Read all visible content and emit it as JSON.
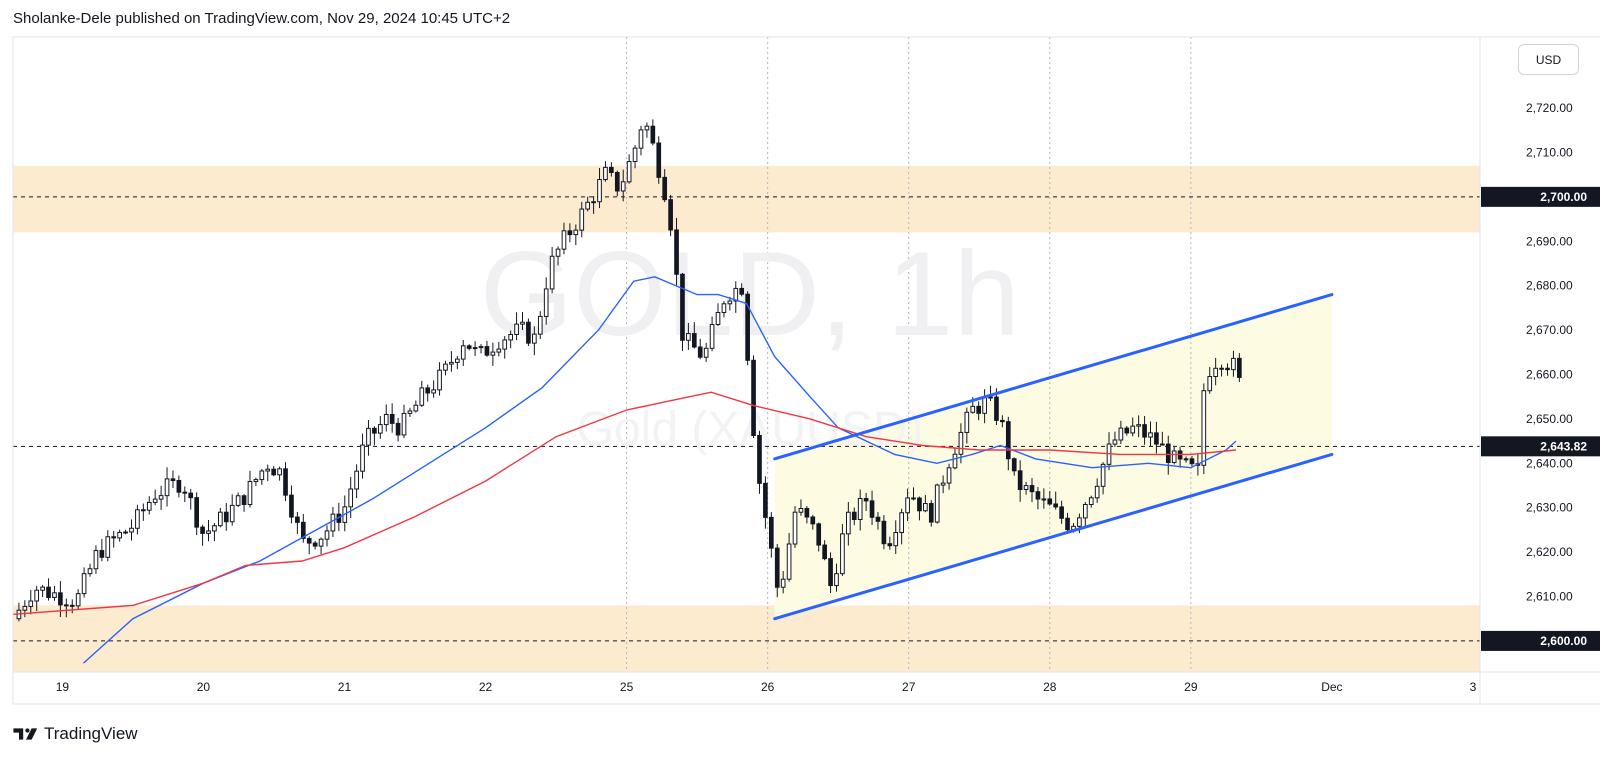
{
  "header": {
    "title": "Sholanke-Dele published on TradingView.com, Nov 29, 2024 10:45 UTC+2"
  },
  "footer": {
    "brand": "TradingView",
    "logo_icon": "tradingview-logo-icon"
  },
  "price_scale": {
    "unit_label": "USD"
  },
  "chart_data": {
    "type": "candlestick",
    "title": "",
    "watermark": {
      "symbol": "GOLD, 1h",
      "description": "Gold (XAUUSD)"
    },
    "y_range": [
      2593,
      2736
    ],
    "y_ticks": [
      {
        "value": 2600,
        "label": "2,600.00"
      },
      {
        "value": 2610,
        "label": "2,610.00"
      },
      {
        "value": 2620,
        "label": "2,620.00"
      },
      {
        "value": 2630,
        "label": "2,630.00"
      },
      {
        "value": 2640,
        "label": "2,640.00"
      },
      {
        "value": 2650,
        "label": "2,650.00"
      },
      {
        "value": 2660,
        "label": "2,660.00"
      },
      {
        "value": 2670,
        "label": "2,670.00"
      },
      {
        "value": 2680,
        "label": "2,680.00"
      },
      {
        "value": 2690,
        "label": "2,690.00"
      },
      {
        "value": 2700,
        "label": "2,700.00"
      },
      {
        "value": 2710,
        "label": "2,710.00"
      },
      {
        "value": 2720,
        "label": "2,720.00"
      }
    ],
    "x_ticks": [
      {
        "t": 0,
        "label": "19"
      },
      {
        "t": 1,
        "label": "20"
      },
      {
        "t": 2,
        "label": "21"
      },
      {
        "t": 3,
        "label": "22"
      },
      {
        "t": 4,
        "label": "25"
      },
      {
        "t": 5,
        "label": "26"
      },
      {
        "t": 6,
        "label": "27"
      },
      {
        "t": 7,
        "label": "28"
      },
      {
        "t": 8,
        "label": "29"
      },
      {
        "t": 9,
        "label": "Dec"
      },
      {
        "t": 10,
        "label": "3"
      }
    ],
    "x_range": [
      -0.35,
      10.05
    ],
    "gridlines_x": [
      4,
      5,
      6,
      7,
      8
    ],
    "price_labels": [
      {
        "value": 2700,
        "label": "2,700.00"
      },
      {
        "value": 2643.82,
        "label": "2,643.82"
      },
      {
        "value": 2600,
        "label": "2,600.00"
      }
    ],
    "horizontal_lines": [
      2700,
      2643.82,
      2600
    ],
    "zones": [
      {
        "from": 2692,
        "to": 2707,
        "color": "#fdebd0"
      },
      {
        "from": 2593,
        "to": 2608,
        "color": "#fdebd0"
      }
    ],
    "channel": {
      "upper": [
        [
          5.05,
          2641
        ],
        [
          9.0,
          2678
        ]
      ],
      "lower": [
        [
          5.05,
          2605
        ],
        [
          9.0,
          2642
        ]
      ],
      "fill": "#fdfbe1",
      "line_color": "#2962ff"
    },
    "close_anchors": [
      [
        -0.35,
        2605
      ],
      [
        -0.2,
        2612
      ],
      [
        0.1,
        2609
      ],
      [
        0.25,
        2620
      ],
      [
        0.5,
        2626
      ],
      [
        0.65,
        2633
      ],
      [
        0.85,
        2636
      ],
      [
        1.0,
        2624
      ],
      [
        1.15,
        2628
      ],
      [
        1.3,
        2633
      ],
      [
        1.45,
        2640
      ],
      [
        1.55,
        2638
      ],
      [
        1.7,
        2622
      ],
      [
        1.85,
        2624
      ],
      [
        2.0,
        2630
      ],
      [
        2.15,
        2645
      ],
      [
        2.3,
        2650
      ],
      [
        2.4,
        2648
      ],
      [
        2.55,
        2655
      ],
      [
        2.7,
        2660
      ],
      [
        2.85,
        2668
      ],
      [
        2.95,
        2664
      ],
      [
        3.1,
        2668
      ],
      [
        3.25,
        2670
      ],
      [
        3.35,
        2668
      ],
      [
        3.45,
        2684
      ],
      [
        3.55,
        2690
      ],
      [
        3.7,
        2697
      ],
      [
        3.85,
        2705
      ],
      [
        3.95,
        2702
      ],
      [
        4.05,
        2710
      ],
      [
        4.12,
        2718
      ],
      [
        4.2,
        2710
      ],
      [
        4.3,
        2698
      ],
      [
        4.4,
        2668
      ],
      [
        4.55,
        2664
      ],
      [
        4.7,
        2678
      ],
      [
        4.82,
        2680
      ],
      [
        4.92,
        2640
      ],
      [
        5.0,
        2625
      ],
      [
        5.08,
        2610
      ],
      [
        5.2,
        2630
      ],
      [
        5.35,
        2624
      ],
      [
        5.45,
        2612
      ],
      [
        5.55,
        2626
      ],
      [
        5.7,
        2632
      ],
      [
        5.85,
        2622
      ],
      [
        6.0,
        2634
      ],
      [
        6.15,
        2628
      ],
      [
        6.3,
        2642
      ],
      [
        6.45,
        2652
      ],
      [
        6.55,
        2654
      ],
      [
        6.65,
        2650
      ],
      [
        6.75,
        2636
      ],
      [
        6.9,
        2632
      ],
      [
        7.0,
        2630
      ],
      [
        7.15,
        2626
      ],
      [
        7.3,
        2634
      ],
      [
        7.45,
        2645
      ],
      [
        7.6,
        2648
      ],
      [
        7.75,
        2645
      ],
      [
        7.9,
        2640
      ],
      [
        8.05,
        2638
      ],
      [
        8.1,
        2660
      ],
      [
        8.2,
        2664
      ],
      [
        8.3,
        2662
      ],
      [
        8.38,
        2655
      ]
    ],
    "series": [
      {
        "name": "",
        "color": "#2962ff",
        "points": [
          [
            0.15,
            2595
          ],
          [
            0.5,
            2605
          ],
          [
            1.0,
            2613
          ],
          [
            1.4,
            2618
          ],
          [
            1.8,
            2625
          ],
          [
            2.2,
            2632
          ],
          [
            2.6,
            2640
          ],
          [
            3.0,
            2648
          ],
          [
            3.4,
            2657
          ],
          [
            3.8,
            2670
          ],
          [
            4.05,
            2681
          ],
          [
            4.2,
            2682
          ],
          [
            4.5,
            2678
          ],
          [
            4.65,
            2678
          ],
          [
            4.85,
            2676
          ],
          [
            5.05,
            2664
          ],
          [
            5.3,
            2655
          ],
          [
            5.5,
            2648
          ],
          [
            5.9,
            2642
          ],
          [
            6.2,
            2640
          ],
          [
            6.45,
            2642
          ],
          [
            6.65,
            2644
          ],
          [
            6.9,
            2641
          ],
          [
            7.3,
            2639
          ],
          [
            7.7,
            2640
          ],
          [
            8.0,
            2639
          ],
          [
            8.25,
            2643
          ],
          [
            8.32,
            2645
          ]
        ]
      },
      {
        "name": "",
        "color": "#f23645",
        "points": [
          [
            -0.35,
            2606
          ],
          [
            0.5,
            2608
          ],
          [
            1.0,
            2613
          ],
          [
            1.3,
            2617
          ],
          [
            1.7,
            2618
          ],
          [
            2.0,
            2621
          ],
          [
            2.5,
            2628
          ],
          [
            3.0,
            2636
          ],
          [
            3.5,
            2646
          ],
          [
            4.0,
            2652
          ],
          [
            4.3,
            2654
          ],
          [
            4.6,
            2656
          ],
          [
            4.9,
            2653
          ],
          [
            5.3,
            2650
          ],
          [
            5.7,
            2646
          ],
          [
            6.1,
            2644
          ],
          [
            6.5,
            2643
          ],
          [
            7.0,
            2643
          ],
          [
            7.5,
            2642
          ],
          [
            8.0,
            2642
          ],
          [
            8.32,
            2643
          ]
        ]
      }
    ],
    "legend": "none",
    "grid": "vertical only"
  }
}
